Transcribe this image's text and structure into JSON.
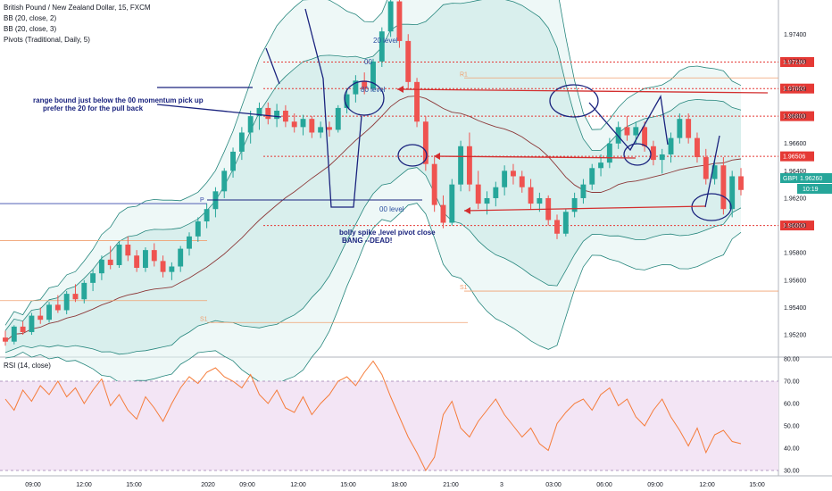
{
  "header": {
    "title": "British Pound / New Zealand Dollar, 15, FXCM",
    "indicators": [
      "BB (20, close, 2)",
      "BB (20, close, 3)",
      "Pivots (Traditional, Daily, 5)"
    ],
    "rsi_label": "RSI (14, close)"
  },
  "chart_data": {
    "type": "candlestick",
    "symbol": "GBPNZD",
    "last_price": "1.96260",
    "countdown": "10:19",
    "price_axis": {
      "range": [
        1.9505,
        1.9765
      ],
      "ticks": [
        "1.97400",
        "1.97200",
        "1.97000",
        "1.96800",
        "1.96600",
        "1.96400",
        "1.96200",
        "1.96000",
        "1.95800",
        "1.95600",
        "1.95400",
        "1.95200"
      ]
    },
    "time_axis": {
      "ticks": [
        "09:00",
        "12:00",
        "15:00",
        "2020",
        "09:00",
        "12:00",
        "15:00",
        "18:00",
        "21:00",
        "3",
        "03:00",
        "06:00",
        "09:00",
        "12:00",
        "15:00"
      ]
    },
    "rsi": {
      "range": [
        28,
        80
      ],
      "ticks": [
        "80.00",
        "70.00",
        "60.00",
        "50.00",
        "40.00",
        "30.00"
      ],
      "band": [
        30,
        70
      ]
    },
    "levels": [
      {
        "label": "1.97196",
        "price": 1.97196,
        "style": "red-dashed"
      },
      {
        "label": "1.97002",
        "price": 1.97002,
        "style": "red-dashed"
      },
      {
        "label": "1.96800",
        "price": 1.968,
        "style": "red-dashed"
      },
      {
        "label": "1.96506",
        "price": 1.96506,
        "style": "red-dashed"
      },
      {
        "label": "1.96000",
        "price": 1.96,
        "style": "red-dashed"
      }
    ],
    "pivots": [
      {
        "label": "R1",
        "price": 1.9708
      },
      {
        "label": "P",
        "price": 1.9616
      },
      {
        "label": "S1",
        "price": 1.9552
      },
      {
        "label": "S1",
        "price": 1.9529
      }
    ],
    "annotations": [
      {
        "text": "20 level"
      },
      {
        "text": "00"
      },
      {
        "text": "80 level"
      },
      {
        "text": "00 level"
      },
      {
        "text": "range bound just below the 00 momentum pick up"
      },
      {
        "text": "prefer the 20 for the pull back"
      },
      {
        "text": "bolly spike ,level pivot close"
      },
      {
        "text": "BANG --DEAD!"
      }
    ],
    "candles_ohlc": [
      [
        1.9518,
        1.9523,
        1.9512,
        1.9515
      ],
      [
        1.9515,
        1.9527,
        1.9513,
        1.9526
      ],
      [
        1.9526,
        1.953,
        1.952,
        1.9522
      ],
      [
        1.9522,
        1.9536,
        1.952,
        1.9534
      ],
      [
        1.9534,
        1.954,
        1.9528,
        1.9531
      ],
      [
        1.9531,
        1.9544,
        1.9529,
        1.9542
      ],
      [
        1.9542,
        1.9549,
        1.9536,
        1.9538
      ],
      [
        1.9538,
        1.9552,
        1.9535,
        1.955
      ],
      [
        1.955,
        1.9557,
        1.9544,
        1.9546
      ],
      [
        1.9546,
        1.956,
        1.9543,
        1.9558
      ],
      [
        1.9558,
        1.9568,
        1.9552,
        1.9565
      ],
      [
        1.9565,
        1.9578,
        1.956,
        1.9575
      ],
      [
        1.9575,
        1.9585,
        1.9568,
        1.9571
      ],
      [
        1.9571,
        1.9588,
        1.9569,
        1.9586
      ],
      [
        1.9586,
        1.9592,
        1.9574,
        1.9578
      ],
      [
        1.9578,
        1.9582,
        1.9566,
        1.9569
      ],
      [
        1.9569,
        1.9584,
        1.9566,
        1.9582
      ],
      [
        1.9582,
        1.9587,
        1.957,
        1.9574
      ],
      [
        1.9574,
        1.9578,
        1.9562,
        1.9566
      ],
      [
        1.9566,
        1.9573,
        1.956,
        1.957
      ],
      [
        1.957,
        1.9585,
        1.9566,
        1.9583
      ],
      [
        1.9583,
        1.9595,
        1.9578,
        1.9592
      ],
      [
        1.9592,
        1.9606,
        1.9588,
        1.9603
      ],
      [
        1.9603,
        1.9616,
        1.9598,
        1.9612
      ],
      [
        1.9612,
        1.9628,
        1.9606,
        1.9625
      ],
      [
        1.9625,
        1.9642,
        1.962,
        1.964
      ],
      [
        1.964,
        1.9657,
        1.9635,
        1.9654
      ],
      [
        1.9654,
        1.9672,
        1.9648,
        1.9668
      ],
      [
        1.9668,
        1.9684,
        1.966,
        1.968
      ],
      [
        1.968,
        1.969,
        1.967,
        1.9686
      ],
      [
        1.9686,
        1.969,
        1.9674,
        1.9678
      ],
      [
        1.9678,
        1.9689,
        1.9672,
        1.9684
      ],
      [
        1.9684,
        1.9688,
        1.9672,
        1.9676
      ],
      [
        1.9676,
        1.9682,
        1.9668,
        1.9672
      ],
      [
        1.9672,
        1.9681,
        1.9666,
        1.9678
      ],
      [
        1.9678,
        1.968,
        1.9664,
        1.9668
      ],
      [
        1.9668,
        1.9676,
        1.9664,
        1.9672
      ],
      [
        1.9672,
        1.9676,
        1.9665,
        1.967
      ],
      [
        1.967,
        1.9688,
        1.9668,
        1.9686
      ],
      [
        1.9686,
        1.97,
        1.9682,
        1.9696
      ],
      [
        1.9696,
        1.971,
        1.969,
        1.9706
      ],
      [
        1.9706,
        1.9712,
        1.9696,
        1.97
      ],
      [
        1.97,
        1.9722,
        1.9698,
        1.972
      ],
      [
        1.972,
        1.9745,
        1.9716,
        1.9742
      ],
      [
        1.9742,
        1.9768,
        1.9738,
        1.9764
      ],
      [
        1.9764,
        1.9768,
        1.973,
        1.9735
      ],
      [
        1.9735,
        1.974,
        1.97,
        1.9705
      ],
      [
        1.9705,
        1.9708,
        1.9672,
        1.9676
      ],
      [
        1.9676,
        1.968,
        1.964,
        1.9645
      ],
      [
        1.9645,
        1.965,
        1.961,
        1.9615
      ],
      [
        1.9615,
        1.9622,
        1.9598,
        1.9602
      ],
      [
        1.9602,
        1.9634,
        1.96,
        1.963
      ],
      [
        1.963,
        1.9662,
        1.9625,
        1.9658
      ],
      [
        1.9658,
        1.9668,
        1.9625,
        1.963
      ],
      [
        1.963,
        1.964,
        1.9612,
        1.9616
      ],
      [
        1.9616,
        1.9625,
        1.9608,
        1.962
      ],
      [
        1.962,
        1.9632,
        1.9614,
        1.9628
      ],
      [
        1.9628,
        1.9644,
        1.9622,
        1.964
      ],
      [
        1.964,
        1.9645,
        1.963,
        1.9636
      ],
      [
        1.9636,
        1.964,
        1.9624,
        1.9628
      ],
      [
        1.9628,
        1.9634,
        1.9612,
        1.9616
      ],
      [
        1.9616,
        1.9624,
        1.961,
        1.962
      ],
      [
        1.962,
        1.9622,
        1.96,
        1.9604
      ],
      [
        1.9604,
        1.9608,
        1.959,
        1.9594
      ],
      [
        1.9594,
        1.9612,
        1.9592,
        1.961
      ],
      [
        1.961,
        1.9624,
        1.9606,
        1.962
      ],
      [
        1.962,
        1.9634,
        1.9616,
        1.963
      ],
      [
        1.963,
        1.9645,
        1.9626,
        1.9642
      ],
      [
        1.9642,
        1.9652,
        1.9636,
        1.9646
      ],
      [
        1.9646,
        1.9664,
        1.9642,
        1.966
      ],
      [
        1.966,
        1.9676,
        1.9656,
        1.9672
      ],
      [
        1.9672,
        1.968,
        1.9662,
        1.9666
      ],
      [
        1.9666,
        1.9676,
        1.966,
        1.9672
      ],
      [
        1.9672,
        1.9676,
        1.9654,
        1.9658
      ],
      [
        1.9658,
        1.9662,
        1.9644,
        1.9648
      ],
      [
        1.9648,
        1.9656,
        1.9638,
        1.9652
      ],
      [
        1.9652,
        1.9668,
        1.9646,
        1.9664
      ],
      [
        1.9664,
        1.9682,
        1.966,
        1.9678
      ],
      [
        1.9678,
        1.9682,
        1.966,
        1.9664
      ],
      [
        1.9664,
        1.9668,
        1.9646,
        1.965
      ],
      [
        1.965,
        1.9656,
        1.963,
        1.9634
      ],
      [
        1.9634,
        1.9648,
        1.963,
        1.9644
      ],
      [
        1.9644,
        1.965,
        1.9608,
        1.9612
      ],
      [
        1.9612,
        1.964,
        1.9606,
        1.9636
      ],
      [
        1.9636,
        1.9642,
        1.9622,
        1.9626
      ]
    ],
    "rsi_values": [
      62,
      57,
      66,
      61,
      68,
      64,
      70,
      63,
      67,
      60,
      66,
      71,
      59,
      64,
      57,
      53,
      63,
      58,
      52,
      60,
      67,
      72,
      69,
      74,
      76,
      72,
      70,
      67,
      73,
      64,
      60,
      66,
      58,
      56,
      63,
      55,
      60,
      64,
      70,
      72,
      68,
      74,
      79,
      73,
      63,
      54,
      45,
      38,
      30,
      36,
      55,
      61,
      49,
      45,
      52,
      57,
      62,
      55,
      50,
      45,
      49,
      42,
      39,
      51,
      56,
      60,
      62,
      57,
      64,
      67,
      59,
      62,
      54,
      50,
      57,
      62,
      54,
      48,
      41,
      49,
      38,
      46,
      48,
      43,
      42
    ],
    "rsi_band_labels": [
      "70.00",
      "30.00"
    ]
  }
}
